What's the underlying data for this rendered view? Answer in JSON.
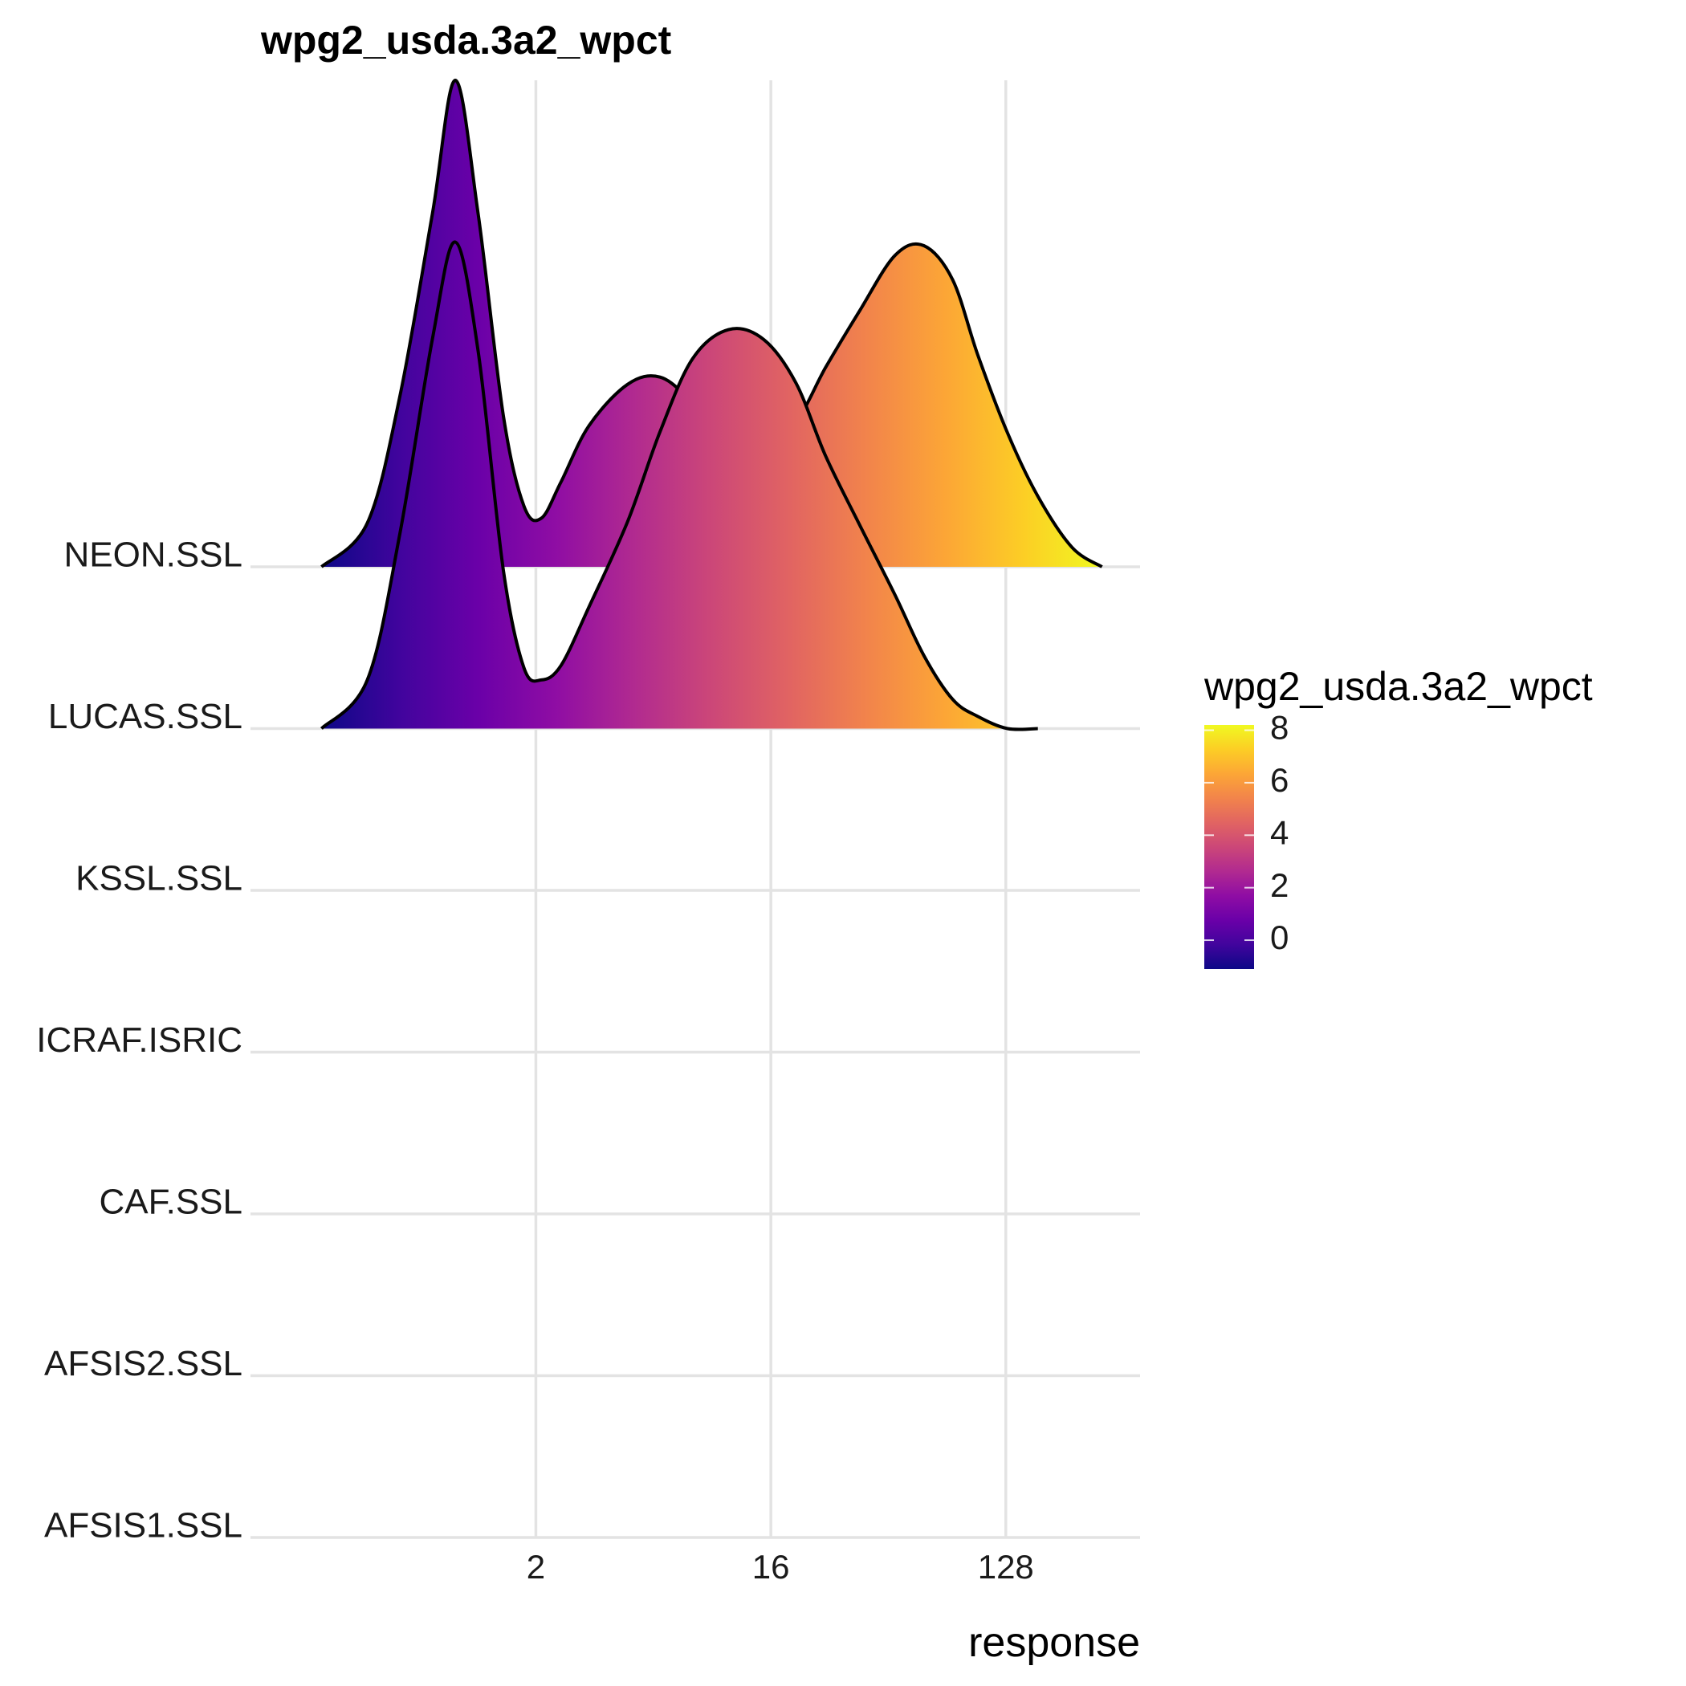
{
  "chart_data": {
    "type": "area",
    "subtype": "ridgeline-density",
    "title": "wpg2_usda.3a2_wpct",
    "xlabel": "response",
    "ylabel": "",
    "x_scale": "log2",
    "x_ticks": [
      2,
      16,
      128
    ],
    "x_tick_labels": [
      "2",
      "16",
      "128"
    ],
    "xlim": [
      0.16,
      420
    ],
    "categories": [
      "AFSIS1.SSL",
      "AFSIS2.SSL",
      "CAF.SSL",
      "ICRAF.ISRIC",
      "KSSL.SSL",
      "LUCAS.SSL",
      "NEON.SSL"
    ],
    "grid": true,
    "legend": {
      "title": "wpg2_usda.3a2_wpct",
      "position": "right",
      "type": "colorbar",
      "palette": "plasma",
      "range": [
        -1.1,
        8.2
      ],
      "breaks": [
        0,
        2,
        4,
        6,
        8
      ],
      "break_labels": [
        "0",
        "2",
        "4",
        "6",
        "8"
      ]
    },
    "series": [
      {
        "category": "NEON.SSL",
        "x": [
          0.3,
          0.45,
          0.6,
          0.8,
          0.98,
          1.2,
          1.5,
          1.8,
          2.1,
          2.5,
          3.2,
          4.5,
          6.0,
          8.0,
          11.0,
          15.0,
          20.0,
          26.0,
          35.0,
          48.0,
          62.0,
          80.0,
          100.0,
          130.0,
          170.0,
          230.0,
          300.0
        ],
        "density": [
          0.0,
          0.18,
          0.7,
          1.45,
          2.0,
          1.45,
          0.62,
          0.25,
          0.2,
          0.35,
          0.58,
          0.75,
          0.78,
          0.68,
          0.55,
          0.53,
          0.6,
          0.82,
          1.05,
          1.28,
          1.32,
          1.18,
          0.87,
          0.55,
          0.29,
          0.08,
          0.0
        ]
      },
      {
        "category": "LUCAS.SSL",
        "x": [
          0.3,
          0.45,
          0.6,
          0.8,
          0.98,
          1.2,
          1.5,
          1.8,
          2.1,
          2.5,
          3.2,
          4.5,
          6.0,
          8.0,
          11.0,
          15.0,
          20.0,
          26.0,
          35.0,
          48.0,
          62.0,
          80.0,
          100.0,
          130.0,
          170.0
        ],
        "density": [
          0.0,
          0.2,
          0.8,
          1.6,
          2.0,
          1.55,
          0.65,
          0.25,
          0.2,
          0.26,
          0.5,
          0.85,
          1.22,
          1.52,
          1.64,
          1.6,
          1.42,
          1.12,
          0.84,
          0.55,
          0.3,
          0.12,
          0.05,
          0.0,
          0.0
        ]
      },
      {
        "category": "KSSL.SSL",
        "x": [],
        "density": []
      },
      {
        "category": "ICRAF.ISRIC",
        "x": [],
        "density": []
      },
      {
        "category": "CAF.SSL",
        "x": [],
        "density": []
      },
      {
        "category": "AFSIS2.SSL",
        "x": [],
        "density": []
      },
      {
        "category": "AFSIS1.SSL",
        "x": [],
        "density": []
      }
    ]
  },
  "colors": {
    "outline": "#000000",
    "grid": "#e3e3e3",
    "plasma": [
      "#0d0887",
      "#41049d",
      "#6a00a8",
      "#8f0da4",
      "#b12a90",
      "#cc4778",
      "#e16462",
      "#f2844b",
      "#fca636",
      "#fcce25",
      "#f0f921"
    ]
  }
}
